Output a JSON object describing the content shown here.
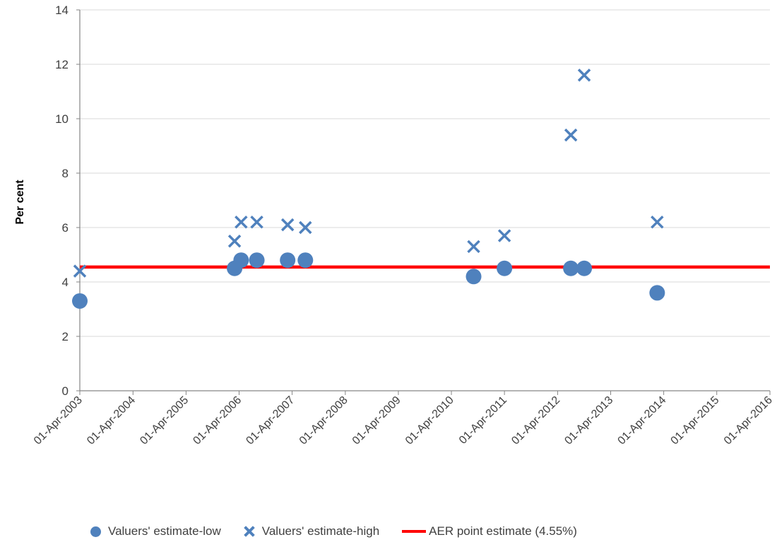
{
  "chart_data": {
    "type": "scatter",
    "title": "",
    "xlabel": "",
    "ylabel": "Per cent",
    "ylim": [
      0,
      14
    ],
    "yticks": [
      "0",
      "2",
      "4",
      "6",
      "8",
      "10",
      "12",
      "14"
    ],
    "xlim": [
      "2003-04-01",
      "2016-04-01"
    ],
    "xticks": [
      "01-Apr-2003",
      "01-Apr-2004",
      "01-Apr-2005",
      "01-Apr-2006",
      "01-Apr-2007",
      "01-Apr-2008",
      "01-Apr-2009",
      "01-Apr-2010",
      "01-Apr-2011",
      "01-Apr-2012",
      "01-Apr-2013",
      "01-Apr-2014",
      "01-Apr-2015",
      "01-Apr-2016"
    ],
    "grid": "horizontal",
    "legend_position": "bottom",
    "series": [
      {
        "name": "Valuers' estimate-low",
        "marker": "circle",
        "color": "#4f81bd",
        "points": [
          {
            "x": "2003-04-01",
            "y": 3.3
          },
          {
            "x": "2006-03-01",
            "y": 4.5
          },
          {
            "x": "2006-04-15",
            "y": 4.8
          },
          {
            "x": "2006-08-01",
            "y": 4.8
          },
          {
            "x": "2007-03-01",
            "y": 4.8
          },
          {
            "x": "2007-07-01",
            "y": 4.8
          },
          {
            "x": "2010-09-01",
            "y": 4.2
          },
          {
            "x": "2011-04-01",
            "y": 4.5
          },
          {
            "x": "2012-07-01",
            "y": 4.5
          },
          {
            "x": "2012-10-01",
            "y": 4.5
          },
          {
            "x": "2014-02-15",
            "y": 3.6
          }
        ]
      },
      {
        "name": "Valuers' estimate-high",
        "marker": "x",
        "color": "#4f81bd",
        "points": [
          {
            "x": "2003-04-01",
            "y": 4.4
          },
          {
            "x": "2006-03-01",
            "y": 5.5
          },
          {
            "x": "2006-04-15",
            "y": 6.2
          },
          {
            "x": "2006-08-01",
            "y": 6.2
          },
          {
            "x": "2007-03-01",
            "y": 6.1
          },
          {
            "x": "2007-07-01",
            "y": 6.0
          },
          {
            "x": "2010-09-01",
            "y": 5.3
          },
          {
            "x": "2011-04-01",
            "y": 5.7
          },
          {
            "x": "2012-07-01",
            "y": 9.4
          },
          {
            "x": "2012-10-01",
            "y": 11.6
          },
          {
            "x": "2014-02-15",
            "y": 6.2
          }
        ]
      },
      {
        "name": "AER point estimate (4.55%)",
        "marker": "line",
        "color": "#ff0000",
        "points": [
          {
            "x": "2003-04-01",
            "y": 4.55
          },
          {
            "x": "2016-04-01",
            "y": 4.55
          }
        ]
      }
    ]
  }
}
